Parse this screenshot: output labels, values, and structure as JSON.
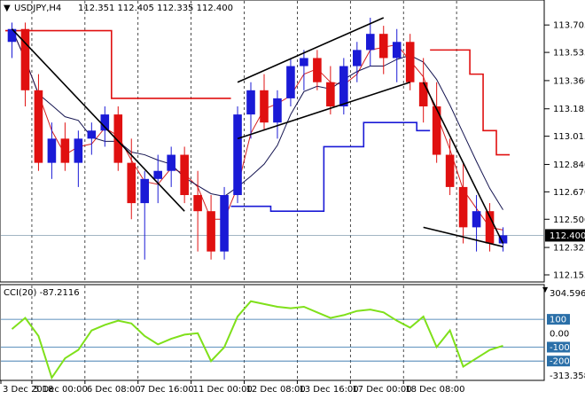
{
  "header": {
    "symbol_label": "USDJPY,H4",
    "ohlc": "112.351 112.405 112.335 112.400",
    "arrow_glyph": "▼"
  },
  "indicator": {
    "label": "CCI(20) -87.2116",
    "arrow_glyph": "▼"
  },
  "colors": {
    "bull": "#1a1ad6",
    "bear": "#e01010",
    "ma_fast": "#d42020",
    "ma_slow": "#141450",
    "supertrend_red": "#e01010",
    "supertrend_blue": "#1a1ad6",
    "cci": "#7fe01a",
    "grid": "#cfd6dd",
    "level": "#2a6fa8",
    "current_price_line": "#6a8aa0"
  },
  "chart_data": {
    "type": "candlestick",
    "price_axis": {
      "ticks": [
        "113.705",
        "113.535",
        "113.360",
        "113.185",
        "113.015",
        "112.840",
        "112.670",
        "112.500",
        "112.325",
        "112.155"
      ],
      "current": "112.400",
      "range": [
        112.155,
        113.75
      ]
    },
    "time_axis": [
      "3 Dec 2018",
      "5 Dec 00:00",
      "6 Dec 08:00",
      "7 Dec 16:00",
      "11 Dec 00:00",
      "12 Dec 08:00",
      "13 Dec 16:00",
      "17 Dec 00:00",
      "18 Dec 08:00"
    ],
    "candles": [
      [
        113.6,
        113.72,
        113.5,
        113.68
      ],
      [
        113.68,
        113.72,
        113.2,
        113.3
      ],
      [
        113.3,
        113.4,
        112.8,
        112.85
      ],
      [
        112.85,
        113.1,
        112.75,
        113.0
      ],
      [
        113.0,
        113.1,
        112.8,
        112.85
      ],
      [
        112.85,
        113.05,
        112.7,
        113.0
      ],
      [
        113.0,
        113.1,
        112.9,
        113.05
      ],
      [
        113.05,
        113.2,
        112.95,
        113.15
      ],
      [
        113.15,
        113.2,
        112.8,
        112.85
      ],
      [
        112.85,
        113.0,
        112.5,
        112.6
      ],
      [
        112.6,
        112.8,
        112.25,
        112.75
      ],
      [
        112.75,
        112.9,
        112.6,
        112.8
      ],
      [
        112.8,
        112.95,
        112.7,
        112.9
      ],
      [
        112.9,
        112.95,
        112.6,
        112.65
      ],
      [
        112.65,
        112.8,
        112.3,
        112.55
      ],
      [
        112.55,
        112.65,
        112.25,
        112.3
      ],
      [
        112.3,
        112.7,
        112.25,
        112.65
      ],
      [
        112.65,
        113.2,
        112.6,
        113.15
      ],
      [
        113.15,
        113.35,
        113.0,
        113.3
      ],
      [
        113.3,
        113.4,
        113.05,
        113.1
      ],
      [
        113.1,
        113.3,
        113.0,
        113.25
      ],
      [
        113.25,
        113.5,
        113.2,
        113.45
      ],
      [
        113.45,
        113.55,
        113.3,
        113.5
      ],
      [
        113.5,
        113.55,
        113.3,
        113.35
      ],
      [
        113.35,
        113.45,
        113.15,
        113.2
      ],
      [
        113.2,
        113.5,
        113.15,
        113.45
      ],
      [
        113.45,
        113.6,
        113.35,
        113.55
      ],
      [
        113.55,
        113.75,
        113.45,
        113.65
      ],
      [
        113.65,
        113.7,
        113.4,
        113.5
      ],
      [
        113.5,
        113.68,
        113.35,
        113.6
      ],
      [
        113.6,
        113.65,
        113.3,
        113.35
      ],
      [
        113.35,
        113.5,
        113.1,
        113.2
      ],
      [
        113.2,
        113.35,
        112.85,
        112.9
      ],
      [
        112.9,
        113.0,
        112.65,
        112.7
      ],
      [
        112.7,
        112.85,
        112.35,
        112.45
      ],
      [
        112.45,
        112.65,
        112.3,
        112.55
      ],
      [
        112.55,
        112.6,
        112.3,
        112.35
      ],
      [
        112.35,
        112.45,
        112.3,
        112.4
      ]
    ],
    "trendlines": [
      {
        "name": "descending",
        "from": [
          0,
          113.68
        ],
        "to": [
          13,
          112.55
        ]
      },
      {
        "name": "channel-upper",
        "from": [
          17,
          113.35
        ],
        "to": [
          28,
          113.75
        ]
      },
      {
        "name": "channel-lower",
        "from": [
          17,
          113.0
        ],
        "to": [
          30,
          113.35
        ]
      },
      {
        "name": "drop-line",
        "from": [
          31,
          113.35
        ],
        "to": [
          37,
          112.35
        ]
      },
      {
        "name": "support",
        "from": [
          31,
          112.45
        ],
        "to": [
          37,
          112.33
        ]
      }
    ],
    "cci_axis": {
      "labels": [
        "304.5963",
        "100",
        "0.00",
        "-100",
        "-200",
        "-313.3587"
      ]
    },
    "cci_values": [
      30,
      110,
      -20,
      -320,
      -180,
      -120,
      20,
      60,
      90,
      70,
      -20,
      -80,
      -40,
      -10,
      0,
      -200,
      -100,
      120,
      230,
      210,
      190,
      180,
      190,
      150,
      110,
      130,
      160,
      170,
      150,
      90,
      40,
      120,
      -100,
      20,
      -240,
      -180,
      -120,
      -90
    ],
    "cci_levels": [
      100,
      -100,
      -200
    ]
  }
}
